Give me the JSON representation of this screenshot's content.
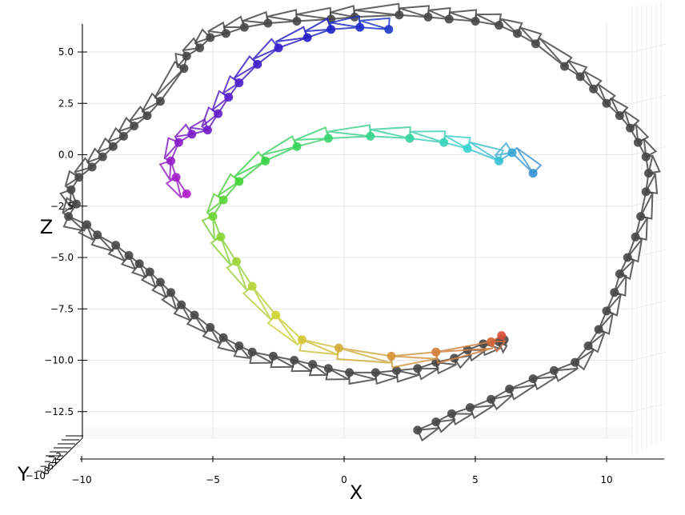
{
  "chart_data": {
    "type": "scatter",
    "projection": "3d",
    "title": "",
    "xlabel": "X",
    "ylabel": "Y",
    "zlabel": "Z",
    "xlim": [
      -10,
      12
    ],
    "zlim": [
      -14,
      6
    ],
    "x_ticks": [
      -10,
      -5,
      0,
      5,
      10
    ],
    "x_tick_labels": [
      "−10",
      "−5",
      "0",
      "5",
      "10"
    ],
    "z_ticks": [
      5,
      2.5,
      0,
      -2.5,
      -5,
      -7.5,
      -10,
      -12.5
    ],
    "z_tick_labels": [
      "5.0",
      "2.5",
      "0.0",
      "−2.5",
      "−5.0",
      "−7.5",
      "−10.0",
      "−12.5"
    ],
    "y_tick_labels": [
      "−10",
      "−8",
      "−6",
      "−4",
      "−2"
    ],
    "grid": true,
    "legend": "none",
    "marker_color_gray": "#474747",
    "series": [
      {
        "color": "#474747",
        "points": [
          [
            2.8,
            -13.4
          ],
          [
            3.5,
            -13.0
          ],
          [
            4.1,
            -12.6
          ],
          [
            4.8,
            -12.3
          ],
          [
            5.6,
            -11.9
          ],
          [
            6.3,
            -11.4
          ],
          [
            7.2,
            -10.9
          ],
          [
            8.0,
            -10.5
          ],
          [
            8.8,
            -10.1
          ],
          [
            9.3,
            -9.3
          ],
          [
            9.7,
            -8.5
          ],
          [
            10.0,
            -7.6
          ],
          [
            10.3,
            -6.7
          ],
          [
            10.5,
            -5.8
          ],
          [
            10.8,
            -5.0
          ],
          [
            11.1,
            -4.0
          ],
          [
            11.3,
            -3.0
          ],
          [
            11.5,
            -1.8
          ],
          [
            11.6,
            -0.9
          ],
          [
            11.5,
            -0.1
          ],
          [
            11.2,
            0.6
          ],
          [
            10.9,
            1.3
          ],
          [
            10.5,
            1.9
          ],
          [
            10.0,
            2.5
          ],
          [
            9.5,
            3.2
          ],
          [
            9.0,
            3.8
          ],
          [
            8.4,
            4.3
          ],
          [
            7.3,
            5.4
          ],
          [
            6.6,
            5.9
          ],
          [
            5.9,
            6.3
          ],
          [
            5.0,
            6.5
          ],
          [
            4.0,
            6.6
          ],
          [
            3.2,
            6.7
          ],
          [
            2.1,
            6.8
          ],
          [
            0.4,
            6.7
          ],
          [
            -0.5,
            6.6
          ],
          [
            -1.8,
            6.5
          ],
          [
            -2.9,
            6.4
          ],
          [
            -3.8,
            6.2
          ],
          [
            -4.5,
            5.9
          ],
          [
            -5.1,
            5.7
          ],
          [
            -5.5,
            5.2
          ],
          [
            -6.0,
            4.8
          ],
          [
            -6.1,
            4.2
          ],
          [
            -7.0,
            2.6
          ],
          [
            -7.5,
            1.9
          ],
          [
            -8.0,
            1.4
          ],
          [
            -8.4,
            0.9
          ],
          [
            -8.8,
            0.4
          ],
          [
            -9.2,
            -0.1
          ],
          [
            -9.6,
            -0.6
          ],
          [
            -10.1,
            -1.1
          ],
          [
            -10.4,
            -1.7
          ],
          [
            -10.2,
            -2.4
          ],
          [
            -10.5,
            -3.0
          ],
          [
            -9.8,
            -3.4
          ],
          [
            -9.4,
            -3.9
          ],
          [
            -8.7,
            -4.4
          ],
          [
            -8.2,
            -4.9
          ],
          [
            -7.8,
            -5.3
          ],
          [
            -7.4,
            -5.7
          ],
          [
            -7.0,
            -6.2
          ],
          [
            -6.6,
            -6.7
          ],
          [
            -6.2,
            -7.3
          ],
          [
            -5.7,
            -7.8
          ],
          [
            -5.1,
            -8.4
          ],
          [
            -4.6,
            -8.9
          ],
          [
            -4.0,
            -9.3
          ],
          [
            -3.5,
            -9.6
          ],
          [
            -2.7,
            -9.8
          ],
          [
            -1.9,
            -10.0
          ],
          [
            -1.2,
            -10.2
          ],
          [
            -0.6,
            -10.4
          ],
          [
            0.2,
            -10.6
          ],
          [
            1.2,
            -10.6
          ],
          [
            2.0,
            -10.5
          ],
          [
            2.8,
            -10.4
          ],
          [
            3.5,
            -10.1
          ],
          [
            4.2,
            -9.9
          ],
          [
            4.7,
            -9.5
          ],
          [
            5.3,
            -9.2
          ],
          [
            5.9,
            -9.1
          ],
          [
            6.1,
            -9.0
          ]
        ]
      },
      {
        "color": "#3f4dd4",
        "points": [
          [
            1.7,
            6.1
          ],
          [
            0.6,
            6.2
          ],
          [
            -0.5,
            6.1
          ],
          [
            -1.4,
            5.7
          ],
          [
            -2.5,
            5.2
          ],
          [
            -3.3,
            4.4
          ],
          [
            -4.0,
            3.5
          ],
          [
            -4.4,
            2.8
          ],
          [
            -4.8,
            2.0
          ],
          [
            -5.2,
            1.2
          ],
          [
            -5.8,
            1.0
          ],
          [
            -6.3,
            0.6
          ],
          [
            -6.6,
            -0.3
          ],
          [
            -6.4,
            -1.1
          ],
          [
            -6.0,
            -1.9
          ]
        ]
      },
      {
        "color": "#7acc3a",
        "points": [
          [
            7.2,
            -0.9
          ],
          [
            6.4,
            0.1
          ],
          [
            5.9,
            -0.3
          ],
          [
            4.7,
            0.3
          ],
          [
            3.8,
            0.6
          ],
          [
            2.5,
            0.8
          ],
          [
            1.0,
            0.9
          ],
          [
            -0.6,
            0.8
          ],
          [
            -1.8,
            0.4
          ],
          [
            -3.0,
            -0.3
          ],
          [
            -4.0,
            -1.3
          ],
          [
            -4.6,
            -2.2
          ],
          [
            -5.0,
            -3.0
          ],
          [
            -4.7,
            -4.0
          ],
          [
            -4.1,
            -5.2
          ],
          [
            -3.5,
            -6.4
          ],
          [
            -2.6,
            -7.8
          ],
          [
            -1.6,
            -9.0
          ],
          [
            -0.2,
            -9.4
          ],
          [
            1.8,
            -9.8
          ],
          [
            3.5,
            -9.6
          ],
          [
            5.6,
            -9.1
          ],
          [
            6.0,
            -8.8
          ]
        ]
      }
    ]
  }
}
